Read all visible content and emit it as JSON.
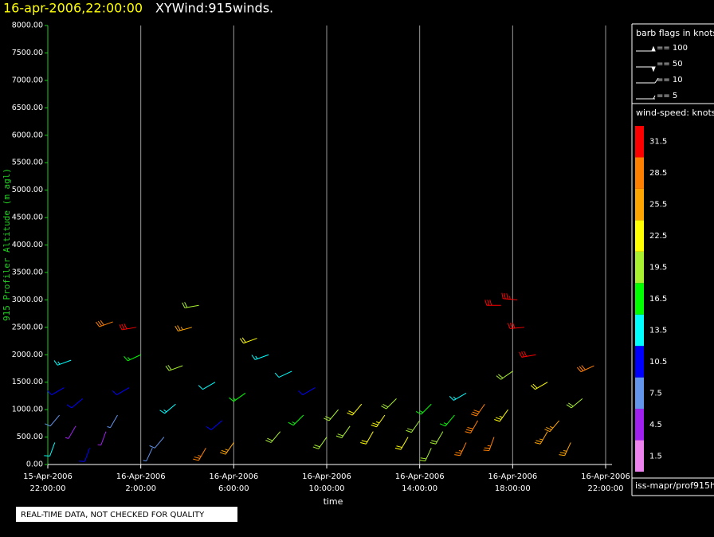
{
  "chart_data": {
    "type": "barbs",
    "title": "16-apr-2006,22:00:00",
    "subtitle": "XYWind:915winds.",
    "y_label": "915 Profiler Altitude (m agl)",
    "x_label": "time",
    "xlim": [
      "2006-04-15T22:00:00",
      "2006-04-16T22:00:00"
    ],
    "xticks": [
      {
        "value": "2006-04-15T22:00:00",
        "label": [
          "15-Apr-2006",
          "22:00:00"
        ]
      },
      {
        "value": "2006-04-16T02:00:00",
        "label": [
          "16-Apr-2006",
          "2:00:00"
        ]
      },
      {
        "value": "2006-04-16T06:00:00",
        "label": [
          "16-Apr-2006",
          "6:00:00"
        ]
      },
      {
        "value": "2006-04-16T10:00:00",
        "label": [
          "16-Apr-2006",
          "10:00:00"
        ]
      },
      {
        "value": "2006-04-16T14:00:00",
        "label": [
          "16-Apr-2006",
          "14:00:00"
        ]
      },
      {
        "value": "2006-04-16T18:00:00",
        "label": [
          "16-Apr-2006",
          "18:00:00"
        ]
      },
      {
        "value": "2006-04-16T22:00:00",
        "label": [
          "16-Apr-2006",
          "22:00:00"
        ]
      }
    ],
    "ylim": [
      0,
      8000
    ],
    "yticks": [
      {
        "value": 0,
        "label": "0.00"
      },
      {
        "value": 500,
        "label": "500.00"
      },
      {
        "value": 1000,
        "label": "1000.00"
      },
      {
        "value": 1500,
        "label": "1500.00"
      },
      {
        "value": 2000,
        "label": "2000.00"
      },
      {
        "value": 2500,
        "label": "2500.00"
      },
      {
        "value": 3000,
        "label": "3000.00"
      },
      {
        "value": 3500,
        "label": "3500.00"
      },
      {
        "value": 4000,
        "label": "4000.00"
      },
      {
        "value": 4500,
        "label": "4500.00"
      },
      {
        "value": 5000,
        "label": "5000.00"
      },
      {
        "value": 5500,
        "label": "5500.00"
      },
      {
        "value": 6000,
        "label": "6000.00"
      },
      {
        "value": 6500,
        "label": "6500.00"
      },
      {
        "value": 7000,
        "label": "7000.00"
      },
      {
        "value": 7500,
        "label": "7500.00"
      },
      {
        "value": 8000,
        "label": "8000.00"
      }
    ],
    "grid": true,
    "x": [
      "2006-04-15T22:18:00",
      "2006-04-15T22:30:00",
      "2006-04-15T22:42:00",
      "2006-04-15T23:00:00",
      "2006-04-15T23:12:00",
      "2006-04-15T23:30:00",
      "2006-04-16T00:30:00",
      "2006-04-16T01:00:00",
      "2006-04-16T01:30:00",
      "2006-04-16T01:48:00",
      "2006-04-16T00:48:00",
      "2006-04-16T02:00:00",
      "2006-04-16T03:00:00",
      "2006-04-16T03:30:00",
      "2006-04-16T03:48:00",
      "2006-04-16T04:12:00",
      "2006-04-16T04:30:00",
      "2006-04-16T05:12:00",
      "2006-04-16T05:30:00",
      "2006-04-16T06:00:00",
      "2006-04-16T06:30:00",
      "2006-04-16T07:00:00",
      "2006-04-16T07:30:00",
      "2006-04-16T08:00:00",
      "2006-04-16T08:30:00",
      "2006-04-16T09:00:00",
      "2006-04-16T09:30:00",
      "2006-04-16T10:00:00",
      "2006-04-16T10:30:00",
      "2006-04-16T11:00:00",
      "2006-04-16T11:30:00",
      "2006-04-16T12:00:00",
      "2006-04-16T12:30:00",
      "2006-04-16T13:00:00",
      "2006-04-16T13:30:00",
      "2006-04-16T14:00:00",
      "2006-04-16T14:30:00",
      "2006-04-16T15:00:00",
      "2006-04-16T15:30:00",
      "2006-04-16T16:00:00",
      "2006-04-16T16:00:00",
      "2006-04-16T16:30:00",
      "2006-04-16T16:48:00",
      "2006-04-16T17:12:00",
      "2006-04-16T17:30:00",
      "2006-04-16T18:12:00",
      "2006-04-16T18:30:00",
      "2006-04-16T19:00:00",
      "2006-04-16T19:30:00",
      "2006-04-16T20:00:00",
      "2006-04-16T20:30:00",
      "2006-04-16T21:00:00",
      "2006-04-16T18:00:00",
      "2006-04-16T19:30:00",
      "2006-04-16T17:48:00",
      "2006-04-16T14:30:00",
      "2006-04-15T23:48:00",
      "2006-04-16T02:30:00",
      "2006-04-16T04:48:00",
      "2006-04-16T21:30:00"
    ],
    "altitude": [
      400,
      900,
      1400,
      1900,
      700,
      1200,
      600,
      900,
      1400,
      2500,
      2600,
      2000,
      500,
      1100,
      1800,
      2500,
      2900,
      1500,
      800,
      400,
      1300,
      2300,
      2000,
      600,
      1700,
      900,
      1400,
      500,
      1000,
      700,
      1100,
      600,
      900,
      1200,
      500,
      800,
      1100,
      600,
      900,
      1300,
      400,
      800,
      1100,
      500,
      2900,
      3000,
      2500,
      2000,
      1500,
      800,
      400,
      1200,
      1700,
      600,
      1000,
      300,
      300,
      300,
      300,
      1800
    ],
    "speed": [
      12,
      8,
      10,
      14,
      5,
      9,
      4,
      6,
      10,
      30,
      28,
      16,
      8,
      14,
      18,
      24,
      20,
      12,
      10,
      26,
      16,
      22,
      14,
      18,
      12,
      17,
      10,
      19,
      18,
      20,
      21,
      22,
      23,
      19,
      21,
      20,
      17,
      18,
      15,
      14,
      27,
      28,
      29,
      27,
      32,
      33,
      31,
      30,
      22,
      26,
      24,
      19,
      20,
      25,
      23,
      18,
      11,
      7,
      27,
      28
    ],
    "direction": [
      200,
      220,
      240,
      250,
      210,
      230,
      200,
      210,
      240,
      260,
      250,
      245,
      220,
      230,
      250,
      255,
      260,
      240,
      230,
      215,
      235,
      250,
      250,
      220,
      245,
      225,
      240,
      215,
      220,
      215,
      220,
      210,
      215,
      225,
      210,
      215,
      225,
      210,
      220,
      240,
      205,
      210,
      215,
      200,
      270,
      275,
      265,
      260,
      240,
      220,
      205,
      230,
      235,
      210,
      215,
      205,
      200,
      205,
      210,
      245
    ],
    "legend_title": "barb flags in knots",
    "legend": [
      "== 100",
      "== 50",
      "== 10",
      "== 5"
    ],
    "colorbar": {
      "title": "wind-speed: knots",
      "labels": [
        1.5,
        4.5,
        7.5,
        10.5,
        13.5,
        16.5,
        19.5,
        22.5,
        25.5,
        28.5,
        31.5
      ],
      "colors": [
        "#ee82ee",
        "#a020f0",
        "#6495ed",
        "#0000ff",
        "#00ffff",
        "#00ff00",
        "#a8f030",
        "#ffff00",
        "#ffa500",
        "#ff8000",
        "#ff0000"
      ]
    },
    "footer": "iss-mapr/prof915h",
    "note": "REAL-TIME DATA, NOT CHECKED FOR QUALITY"
  }
}
